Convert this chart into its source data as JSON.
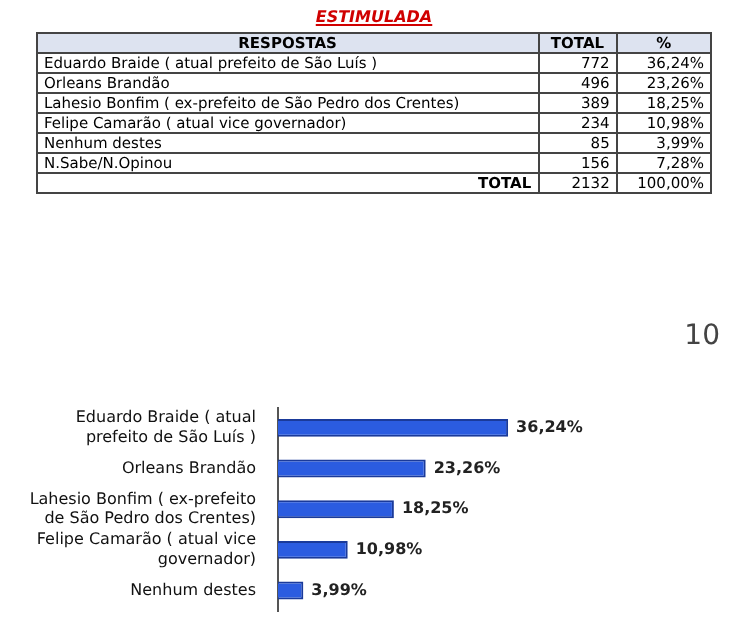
{
  "chart_data": [
    {
      "type": "other",
      "title": "ESTIMULADA",
      "data_labels": true,
      "ylabel": "RESPOSTAS",
      "categories": [
        "Eduardo Braide ( atual prefeito de São Luís )",
        "Orleans Brandão",
        "Lahesio Bonfim ( ex-prefeito de São Pedro dos Crentes)",
        "Felipe Camarão ( atual vice governador)",
        "Nenhum destes",
        "N.Sabe/N.Opinou",
        "TOTAL"
      ],
      "series": [
        {
          "name": "TOTAL",
          "values": [
            772,
            496,
            389,
            234,
            85,
            156,
            2132
          ]
        },
        {
          "name": "%",
          "values": [
            36.24,
            23.26,
            18.25,
            10.98,
            3.99,
            7.28,
            100
          ],
          "value_labels": [
            "36,24%",
            "23,26%",
            "18,25%",
            "10,98%",
            "3,99%",
            "7,28%",
            "100,00%"
          ]
        }
      ]
    },
    {
      "type": "bar",
      "orientation": "horizontal",
      "categories": [
        "Eduardo Braide ( atual prefeito de São Luís )",
        "Orleans Brandão",
        "Lahesio Bonfim ( ex-prefeito de São Pedro dos Crentes)",
        "Felipe Camarão ( atual vice governador)",
        "Nenhum destes"
      ],
      "series": [
        {
          "color": "#2b5ce0",
          "values": [
            36.24,
            23.26,
            18.25,
            10.98,
            3.99
          ],
          "value_labels": [
            "36,24%",
            "23,26%",
            "18,25%",
            "10,98%",
            "3,99%"
          ]
        }
      ],
      "annotations": [
        "10"
      ],
      "legend": false
    }
  ]
}
